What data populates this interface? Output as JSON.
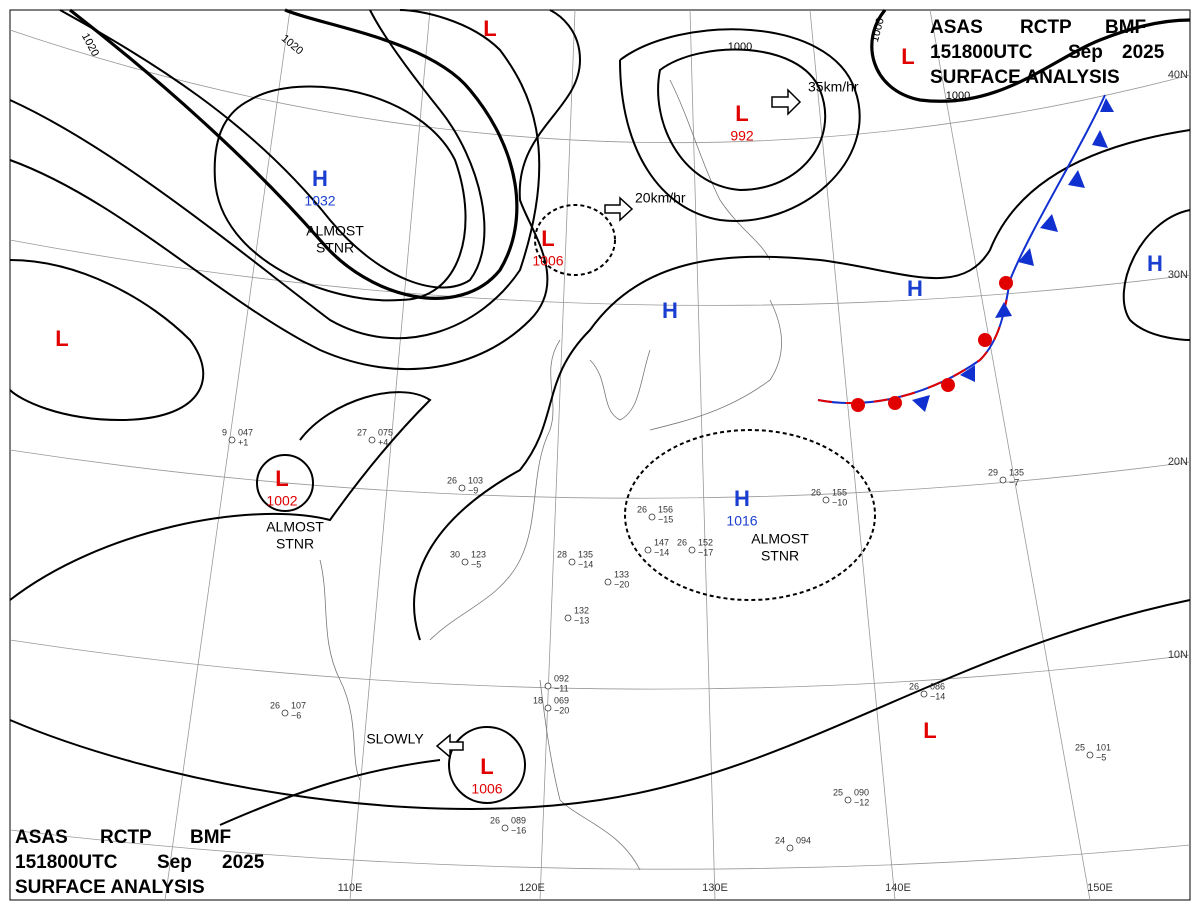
{
  "header": {
    "line1": [
      "ASAS",
      "RCTP",
      "BMF"
    ],
    "line2": [
      "151800UTC",
      "Sep",
      "2025"
    ],
    "line3": "SURFACE ANALYSIS"
  },
  "centers": [
    {
      "symbol": "H",
      "pressure": 1032,
      "note": [
        "ALMOST",
        "STNR"
      ]
    },
    {
      "symbol": "L",
      "pressure": 1006
    },
    {
      "symbol": "L",
      "pressure": 992
    },
    {
      "symbol": "H",
      "pressure": 1016,
      "note": [
        "ALMOST",
        "STNR"
      ]
    },
    {
      "symbol": "L",
      "pressure": 1002,
      "note": [
        "ALMOST",
        "STNR"
      ]
    },
    {
      "symbol": "L",
      "pressure": 1006
    },
    {
      "symbol": "L"
    },
    {
      "symbol": "L"
    },
    {
      "symbol": "L"
    },
    {
      "symbol": "L"
    },
    {
      "symbol": "H"
    },
    {
      "symbol": "H"
    },
    {
      "symbol": "H"
    }
  ],
  "motions": [
    "35km/hr",
    "20km/hr",
    "SLOWLY"
  ],
  "isobar_labels": [
    1020,
    1020,
    1000,
    1000,
    1000
  ],
  "latitudes": [
    "40N",
    "30N",
    "20N",
    "10N"
  ],
  "longitudes": [
    "110E",
    "120E",
    "130E",
    "140E",
    "150E"
  ],
  "stations": [
    {
      "temp": 26,
      "pressure": "156",
      "tendency": "−15"
    },
    {
      "temp": 26,
      "pressure": "155",
      "tendency": "−10"
    },
    {
      "pressure": "147",
      "tendency": "−14"
    },
    {
      "temp": 26,
      "pressure": "152",
      "tendency": "−17"
    },
    {
      "temp": 28,
      "pressure": "135",
      "tendency": "−14"
    },
    {
      "pressure": "133",
      "tendency": "−20"
    },
    {
      "pressure": "132",
      "tendency": "−13"
    },
    {
      "temp": 30,
      "pressure": "123",
      "tendency": "−5"
    },
    {
      "temp": 26,
      "pressure": "103",
      "tendency": "−9"
    },
    {
      "temp": 27,
      "pressure": "075",
      "tendency": "+4"
    },
    {
      "temp": 9,
      "pressure": "047",
      "tendency": "+1"
    },
    {
      "temp": 26,
      "pressure": "086",
      "tendency": "−14"
    },
    {
      "temp": 25,
      "pressure": "101",
      "tendency": "−5"
    },
    {
      "temp": 25,
      "pressure": "090",
      "tendency": "−12"
    },
    {
      "temp": 24,
      "pressure": "094"
    },
    {
      "temp": 26,
      "pressure": "089",
      "tendency": "−16"
    },
    {
      "temp": 29,
      "pressure": "135",
      "tendency": "−7"
    },
    {
      "pressure": "092",
      "tendency": "−11"
    },
    {
      "temp": 18,
      "pressure": "069",
      "tendency": "−20"
    },
    {
      "temp": 26,
      "pressure": "107",
      "tendency": "−6"
    }
  ]
}
